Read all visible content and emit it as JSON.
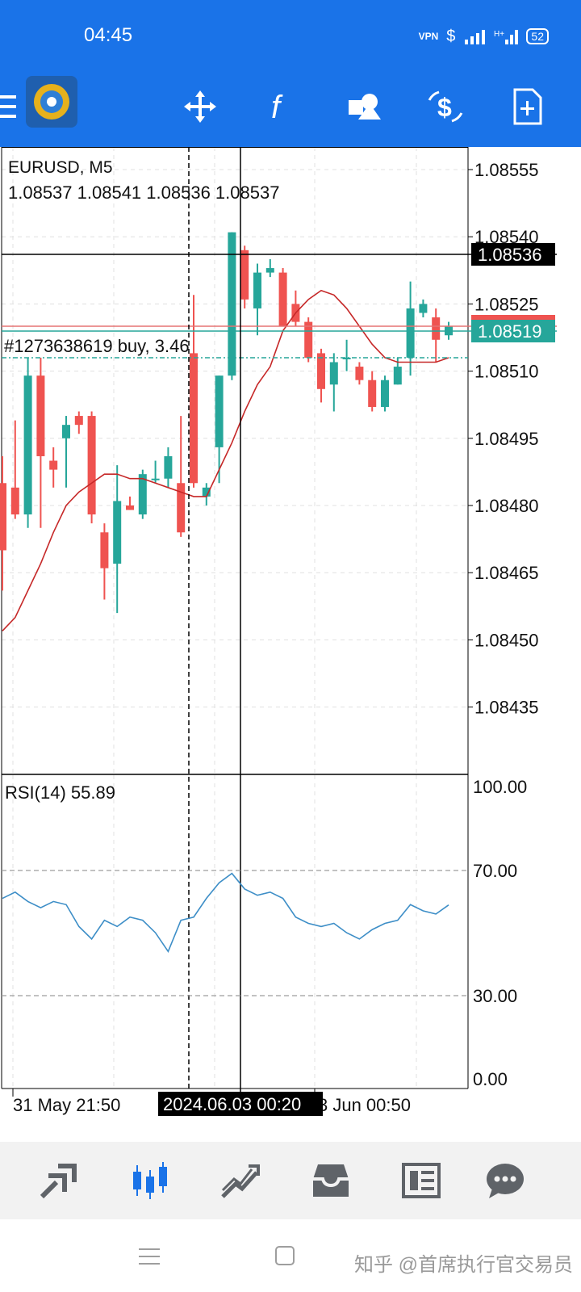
{
  "status": {
    "time": "04:45",
    "vpn": "VPN",
    "battery": "52"
  },
  "toolbar": {
    "menu_icon": "menu-icon",
    "app_icon": "metatrader-logo",
    "buttons": [
      "crosshair-move-icon",
      "indicators-icon",
      "objects-icon",
      "trade-icon",
      "new-order-icon"
    ]
  },
  "chart": {
    "symbol": "EURUSD, M5",
    "ohlc": "1.08537 1.08541 1.08536 1.08537",
    "order_line": "#1273638619 buy, 3.46",
    "price_axis": [
      "1.08555",
      "1.08540",
      "1.08525",
      "1.08510",
      "1.08495",
      "1.08480",
      "1.08465",
      "1.08450",
      "1.08435"
    ],
    "cursor_price": "1.08536",
    "bid_price": "1.08519",
    "ask_price_hidden": "1.08520",
    "time_labels": {
      "left": "31 May 21:50",
      "cursor": "2024.06.03 00:20",
      "right": "3 Jun 00:50"
    },
    "colors": {
      "bull": "#26a69a",
      "bear": "#ef5350",
      "ma": "#c62828",
      "rsi": "#3d8ec7",
      "cursor_bg": "#000000",
      "bid_bg": "#26a69a",
      "ask_line": "#e57373"
    }
  },
  "rsi": {
    "label": "RSI(14) 55.89",
    "levels": [
      "100.00",
      "70.00",
      "30.00",
      "0.00"
    ]
  },
  "chart_data": {
    "type": "candlestick",
    "candles": [
      [
        1.08485,
        1.08491,
        1.08461,
        1.0847
      ],
      [
        1.08484,
        1.08499,
        1.08477,
        1.08478
      ],
      [
        1.08478,
        1.08513,
        1.08475,
        1.08509
      ],
      [
        1.08509,
        1.08513,
        1.08475,
        1.08491
      ],
      [
        1.0849,
        1.08493,
        1.08484,
        1.08488
      ],
      [
        1.08495,
        1.085,
        1.08484,
        1.08498
      ],
      [
        1.085,
        1.08501,
        1.08496,
        1.08498
      ],
      [
        1.085,
        1.08501,
        1.08476,
        1.08478
      ],
      [
        1.08474,
        1.08476,
        1.08459,
        1.08466
      ],
      [
        1.08467,
        1.08489,
        1.08456,
        1.08481
      ],
      [
        1.0848,
        1.08482,
        1.08479,
        1.08479
      ],
      [
        1.08478,
        1.08488,
        1.08477,
        1.08487
      ],
      [
        1.08486,
        1.0849,
        1.08485,
        1.08486
      ],
      [
        1.08486,
        1.08493,
        1.08484,
        1.08491
      ],
      [
        1.08485,
        1.085,
        1.08473,
        1.08474
      ],
      [
        1.08514,
        1.08527,
        1.08484,
        1.08485
      ],
      [
        1.08482,
        1.08485,
        1.0848,
        1.08484
      ],
      [
        1.08493,
        1.08509,
        1.08485,
        1.08509
      ],
      [
        1.08509,
        1.08541,
        1.08508,
        1.08541
      ],
      [
        1.08537,
        1.08538,
        1.08524,
        1.08526
      ],
      [
        1.08524,
        1.08534,
        1.08518,
        1.08532
      ],
      [
        1.08532,
        1.08535,
        1.08531,
        1.08533
      ],
      [
        1.08532,
        1.08533,
        1.0852,
        1.0852
      ],
      [
        1.08525,
        1.08528,
        1.0852,
        1.08521
      ],
      [
        1.08521,
        1.08522,
        1.08512,
        1.08513
      ],
      [
        1.08514,
        1.08515,
        1.08503,
        1.08506
      ],
      [
        1.08507,
        1.08514,
        1.08501,
        1.08512
      ],
      [
        1.08513,
        1.08517,
        1.0851,
        1.08513
      ],
      [
        1.08511,
        1.08512,
        1.08507,
        1.08508
      ],
      [
        1.08508,
        1.0851,
        1.08501,
        1.08502
      ],
      [
        1.08502,
        1.08509,
        1.08501,
        1.08508
      ],
      [
        1.08507,
        1.08513,
        1.08507,
        1.08511
      ],
      [
        1.08513,
        1.0853,
        1.08509,
        1.08524
      ],
      [
        1.08523,
        1.08526,
        1.08522,
        1.08525
      ],
      [
        1.08522,
        1.08524,
        1.08512,
        1.08517
      ],
      [
        1.08518,
        1.08521,
        1.08517,
        1.0852
      ]
    ],
    "ma": [
      1.08452,
      1.08455,
      1.08461,
      1.08467,
      1.08474,
      1.0848,
      1.08483,
      1.08485,
      1.08487,
      1.08487,
      1.08486,
      1.08486,
      1.08485,
      1.08484,
      1.08483,
      1.08482,
      1.08482,
      1.08488,
      1.08494,
      1.08501,
      1.08507,
      1.08511,
      1.08519,
      1.08523,
      1.08526,
      1.08528,
      1.08527,
      1.08524,
      1.0852,
      1.08516,
      1.08513,
      1.08512,
      1.08512,
      1.08512,
      1.08512,
      1.08513
    ],
    "rsi_values": [
      58,
      60,
      57,
      55,
      57,
      56,
      49,
      45,
      51,
      49,
      52,
      51,
      47,
      41,
      51,
      52,
      58,
      63,
      66,
      61,
      59,
      60,
      58,
      52,
      50,
      49,
      50,
      47,
      45,
      48,
      50,
      51,
      56,
      54,
      53,
      55.89
    ],
    "ylim": [
      1.08425,
      1.0856
    ],
    "rsi_ylim": [
      0,
      100
    ]
  },
  "bottom_nav": [
    "quotes-icon",
    "chart-icon",
    "trade-icon",
    "history-icon",
    "news-icon",
    "messages-icon"
  ],
  "system": {
    "watermark": "知乎 @首席执行官交易员"
  }
}
